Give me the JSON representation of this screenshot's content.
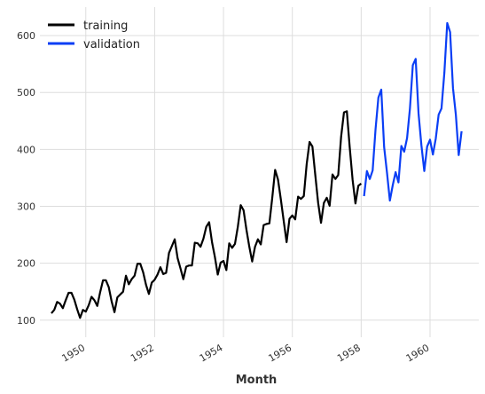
{
  "chart_data": {
    "type": "line",
    "xlabel": "Month",
    "x_tick_labels": [
      "1950",
      "1952",
      "1954",
      "1956",
      "1958",
      "1960"
    ],
    "y_tick_labels": [
      "100",
      "200",
      "300",
      "400",
      "500",
      "600"
    ],
    "xlim": [
      "1948-09-01",
      "1961-06-01"
    ],
    "ylim": [
      70,
      650
    ],
    "x_ticks": [
      "1950-01-01",
      "1952-01-01",
      "1954-01-01",
      "1956-01-01",
      "1958-01-01",
      "1960-01-01"
    ],
    "y_ticks": [
      100,
      200,
      300,
      400,
      500,
      600
    ],
    "grid": true,
    "legend_position": "top-left",
    "series": [
      {
        "name": "training",
        "color": "#000000",
        "start": "1949-01",
        "values": [
          112,
          118,
          132,
          129,
          121,
          135,
          148,
          148,
          136,
          119,
          104,
          118,
          115,
          126,
          141,
          135,
          125,
          149,
          170,
          170,
          158,
          133,
          114,
          140,
          145,
          150,
          178,
          163,
          172,
          178,
          199,
          199,
          184,
          162,
          146,
          166,
          171,
          180,
          193,
          181,
          183,
          218,
          230,
          242,
          209,
          191,
          172,
          194,
          196,
          196,
          236,
          235,
          229,
          243,
          264,
          272,
          237,
          211,
          180,
          201,
          204,
          188,
          235,
          227,
          234,
          264,
          302,
          293,
          259,
          229,
          203,
          229,
          242,
          233,
          267,
          269,
          270,
          315,
          364,
          347,
          312,
          274,
          237,
          278,
          284,
          277,
          317,
          313,
          318,
          374,
          413,
          405,
          355,
          306,
          271,
          306,
          315,
          301,
          356,
          348,
          355,
          422,
          465,
          467,
          404,
          347,
          305,
          336,
          340
        ]
      },
      {
        "name": "validation",
        "color": "#0a3ef5",
        "start": "1958-02",
        "values": [
          318,
          362,
          348,
          363,
          435,
          491,
          505,
          404,
          359,
          310,
          337,
          360,
          342,
          406,
          396,
          420,
          472,
          548,
          559,
          463,
          407,
          362,
          405,
          417,
          391,
          419,
          461,
          472,
          535,
          622,
          606,
          508,
          461,
          390,
          432
        ]
      }
    ]
  }
}
